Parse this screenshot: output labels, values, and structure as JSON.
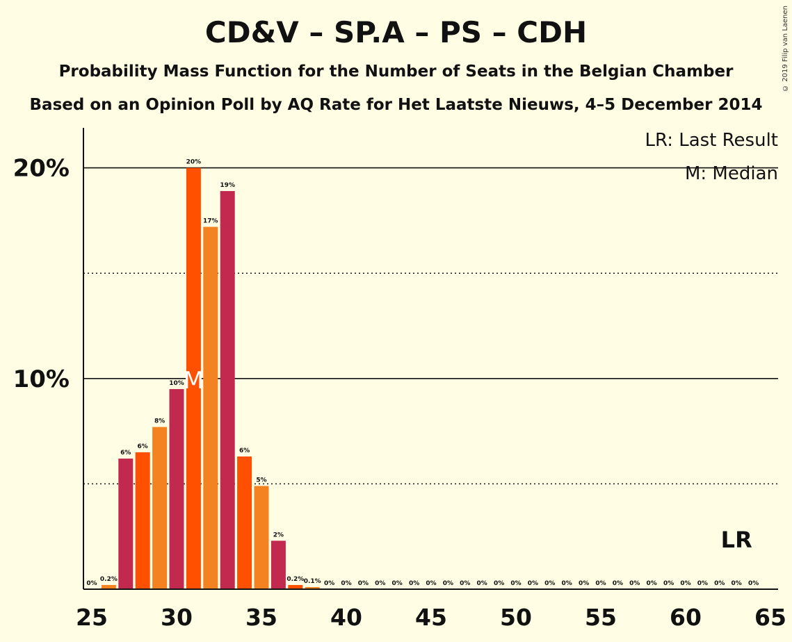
{
  "header": {
    "title": "CD&V – SP.A – PS – CDH",
    "subtitle1": "Probability Mass Function for the Number of Seats in the Belgian Chamber",
    "subtitle2": "Based on an Opinion Poll by AQ Rate for Het Laatste Nieuws, 4–5 December 2014",
    "copyright": "© 2019 Filip van Laenen"
  },
  "legend": {
    "lr": "LR: Last Result",
    "m": "M: Median"
  },
  "chart_data": {
    "type": "bar",
    "title": "CD&V – SP.A – PS – CDH",
    "x": [
      25,
      26,
      27,
      28,
      29,
      30,
      31,
      32,
      33,
      34,
      35,
      36,
      37,
      38,
      39,
      40,
      41,
      42,
      43,
      44,
      45,
      46,
      47,
      48,
      49,
      50,
      51,
      52,
      53,
      54,
      55,
      56,
      57,
      58,
      59,
      60,
      61,
      62,
      63,
      64,
      65
    ],
    "values": [
      0,
      0.2,
      6.2,
      6.5,
      7.7,
      9.5,
      20.0,
      17.2,
      18.9,
      6.3,
      4.9,
      2.3,
      0.2,
      0.1,
      0,
      0,
      0,
      0,
      0,
      0,
      0,
      0,
      0,
      0,
      0,
      0,
      0,
      0,
      0,
      0,
      0,
      0,
      0,
      0,
      0,
      0,
      0,
      0,
      0,
      0,
      0
    ],
    "bar_labels": [
      "0%",
      "0.2%",
      "6%",
      "6%",
      "8%",
      "10%",
      "20%",
      "17%",
      "19%",
      "6%",
      "5%",
      "2%",
      "0.2%",
      "0.1%",
      "0%",
      "0%",
      "0%",
      "0%",
      "0%",
      "0%",
      "0%",
      "0%",
      "0%",
      "0%",
      "0%",
      "0%",
      "0%",
      "0%",
      "0%",
      "0%",
      "0%",
      "0%",
      "0%",
      "0%",
      "0%",
      "0%",
      "0%",
      "0%",
      "0%",
      "0%",
      ""
    ],
    "xticks": [
      25,
      30,
      35,
      40,
      45,
      50,
      55,
      60,
      65
    ],
    "xtick_labels": [
      "25",
      "30",
      "35",
      "40",
      "45",
      "50",
      "55",
      "60",
      "65"
    ],
    "yticks": [
      10,
      20
    ],
    "ytick_labels": [
      "10%",
      "20%"
    ],
    "ydotted": [
      5,
      15
    ],
    "xlim": [
      24.5,
      65.5
    ],
    "ylim": [
      0,
      21.9
    ],
    "median_seat": 31,
    "median_marker": "M",
    "last_result_seat": 63,
    "last_result_marker": "LR",
    "colors": [
      "#ff5000",
      "#f58220",
      "#c2294f"
    ],
    "text_color": "#111111",
    "background": "#fffde3"
  }
}
